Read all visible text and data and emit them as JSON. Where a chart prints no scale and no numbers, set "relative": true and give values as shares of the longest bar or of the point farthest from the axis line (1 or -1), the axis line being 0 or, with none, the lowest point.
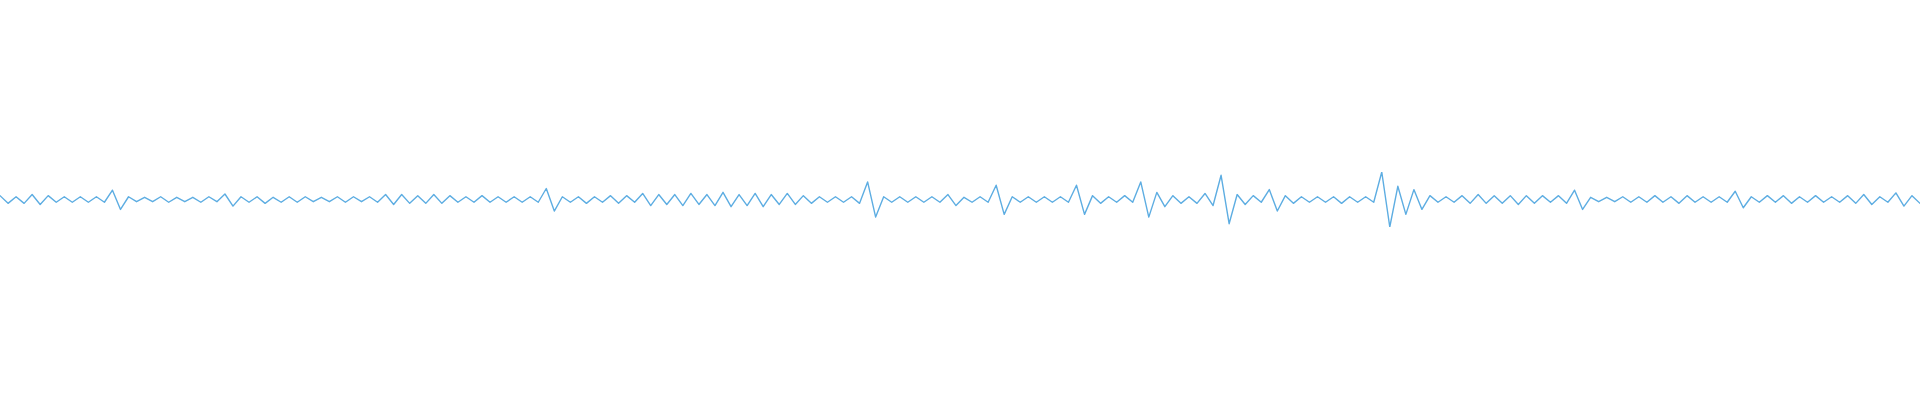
{
  "chart_data": {
    "type": "line",
    "relative": true,
    "categories": [
      null,
      null,
      null,
      null,
      null,
      null,
      null,
      null,
      null,
      null,
      null,
      null,
      null,
      null,
      null,
      null,
      null,
      null,
      null,
      null,
      null,
      null,
      null,
      null,
      null,
      null,
      null,
      null,
      null,
      null,
      null,
      null,
      null,
      null,
      null,
      null,
      null,
      null,
      null,
      null,
      null,
      null,
      null,
      null,
      null,
      null,
      null,
      null,
      null,
      null,
      null,
      null,
      null,
      null,
      null,
      null,
      null,
      null,
      null,
      null,
      null,
      null,
      null,
      null,
      null,
      null,
      null,
      null,
      null,
      null,
      null,
      null,
      null,
      null,
      null,
      null,
      null,
      null,
      null,
      null,
      null,
      null,
      null,
      null,
      null,
      null,
      null,
      null,
      null,
      null,
      null,
      null,
      null,
      null,
      null,
      null,
      null,
      null,
      null,
      null,
      null,
      null,
      null,
      null,
      null,
      null,
      null,
      null,
      null,
      null,
      null,
      null,
      null,
      null,
      null,
      null,
      null,
      null,
      null,
      null,
      null,
      null,
      null,
      null,
      null,
      null,
      null,
      null,
      null,
      null,
      null,
      null,
      null,
      null,
      null,
      null,
      null,
      null,
      null,
      null,
      null,
      null,
      null,
      null,
      null,
      null,
      null,
      null,
      null,
      null,
      null,
      null,
      null,
      null,
      null,
      null,
      null,
      null,
      null,
      null,
      null,
      null,
      null,
      null,
      null,
      null,
      null,
      null,
      null,
      null,
      null,
      null,
      null,
      null,
      null,
      null,
      null,
      null,
      null,
      null,
      null,
      null,
      null,
      null,
      null,
      null,
      null,
      null,
      null,
      null,
      null,
      null,
      null,
      null,
      null,
      null,
      null,
      null,
      null,
      null,
      null,
      null,
      null,
      null,
      null,
      null,
      null,
      null,
      null,
      null,
      null,
      null,
      null,
      null,
      null,
      null,
      null,
      null,
      null,
      null,
      null,
      null,
      null,
      null,
      null,
      null,
      null,
      null,
      null,
      null,
      null,
      null,
      null,
      null,
      null,
      null,
      null,
      null,
      null,
      null
    ],
    "series": [
      {
        "color": "#5dade2",
        "values": [
          0.57,
          0.43,
          0.55,
          0.43,
          0.59,
          0.41,
          0.57,
          0.45,
          0.55,
          0.45,
          0.55,
          0.45,
          0.55,
          0.45,
          0.67,
          0.32,
          0.55,
          0.46,
          0.54,
          0.46,
          0.55,
          0.45,
          0.54,
          0.46,
          0.54,
          0.45,
          0.55,
          0.46,
          0.6,
          0.38,
          0.55,
          0.45,
          0.55,
          0.43,
          0.54,
          0.45,
          0.55,
          0.45,
          0.55,
          0.46,
          0.54,
          0.46,
          0.55,
          0.45,
          0.55,
          0.46,
          0.55,
          0.45,
          0.59,
          0.41,
          0.59,
          0.43,
          0.57,
          0.43,
          0.59,
          0.43,
          0.57,
          0.45,
          0.55,
          0.45,
          0.57,
          0.45,
          0.55,
          0.45,
          0.55,
          0.45,
          0.55,
          0.45,
          0.7,
          0.29,
          0.55,
          0.45,
          0.55,
          0.43,
          0.55,
          0.45,
          0.57,
          0.43,
          0.57,
          0.45,
          0.61,
          0.39,
          0.59,
          0.41,
          0.59,
          0.39,
          0.61,
          0.41,
          0.59,
          0.39,
          0.63,
          0.37,
          0.59,
          0.39,
          0.61,
          0.37,
          0.59,
          0.41,
          0.61,
          0.41,
          0.57,
          0.43,
          0.55,
          0.45,
          0.55,
          0.45,
          0.55,
          0.43,
          0.82,
          0.18,
          0.55,
          0.45,
          0.55,
          0.45,
          0.55,
          0.45,
          0.55,
          0.45,
          0.59,
          0.39,
          0.54,
          0.45,
          0.55,
          0.45,
          0.76,
          0.23,
          0.55,
          0.45,
          0.55,
          0.45,
          0.55,
          0.45,
          0.55,
          0.45,
          0.76,
          0.23,
          0.57,
          0.43,
          0.55,
          0.45,
          0.57,
          0.45,
          0.82,
          0.18,
          0.63,
          0.37,
          0.57,
          0.43,
          0.55,
          0.43,
          0.61,
          0.39,
          0.94,
          0.06,
          0.59,
          0.41,
          0.57,
          0.45,
          0.68,
          0.29,
          0.57,
          0.43,
          0.55,
          0.45,
          0.55,
          0.45,
          0.55,
          0.43,
          0.55,
          0.45,
          0.55,
          0.45,
          1,
          0,
          0.74,
          0.23,
          0.68,
          0.32,
          0.57,
          0.45,
          0.55,
          0.45,
          0.57,
          0.43,
          0.59,
          0.43,
          0.57,
          0.43,
          0.57,
          0.41,
          0.57,
          0.43,
          0.57,
          0.45,
          0.57,
          0.43,
          0.67,
          0.32,
          0.54,
          0.46,
          0.54,
          0.46,
          0.55,
          0.45,
          0.55,
          0.45,
          0.57,
          0.45,
          0.55,
          0.43,
          0.57,
          0.45,
          0.55,
          0.45,
          0.55,
          0.45,
          0.65,
          0.35,
          0.55,
          0.45,
          0.57,
          0.45,
          0.57,
          0.43,
          0.55,
          0.45,
          0.57,
          0.45,
          0.55,
          0.45,
          0.57,
          0.43,
          0.59,
          0.41,
          0.55,
          0.45,
          0.62,
          0.38,
          0.57,
          0.43
        ]
      }
    ]
  }
}
